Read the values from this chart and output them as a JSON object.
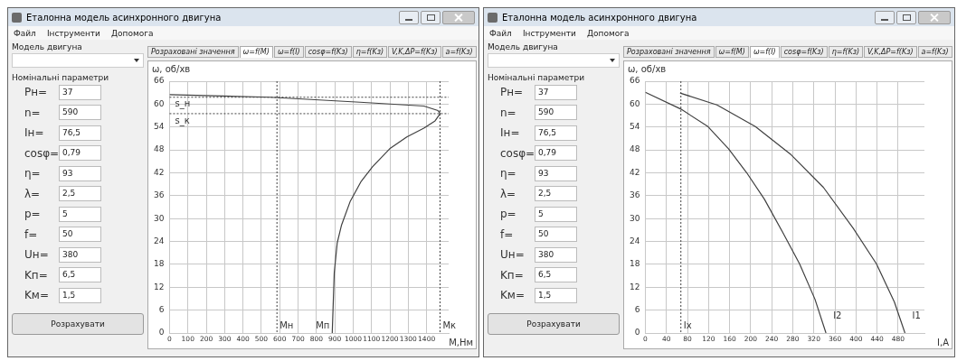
{
  "chart_data": [
    {
      "type": "other",
      "title": "Еталонна модель асинхронного двигуна",
      "annotations": [
        "Файл",
        "Інструменти",
        "Допомога",
        "Модель двигуна",
        "Номінальні параметри",
        "Pн=",
        "37",
        "n=",
        "590",
        "Iн=",
        "76,5",
        "cosφ=",
        "0,79",
        "η=",
        "93",
        "λ=",
        "2,5",
        "p=",
        "5",
        "f=",
        "50",
        "Uн=",
        "380",
        "Kп=",
        "6,5",
        "Kм=",
        "1,5",
        "Розрахувати",
        "Розраховані значення",
        "ω=f(M)",
        "ω=f(I)",
        "cosφ=f(Kз)",
        "η=f(Kз)",
        "V,K,ΔP=f(Kз)",
        "a=f(Kз)"
      ]
    },
    {
      "type": "line",
      "xlabel": "М,Нм",
      "ylabel": "ω, об/хв",
      "xlim": [
        0,
        1520
      ],
      "ylim": [
        0,
        66
      ],
      "xticks": [
        0,
        100,
        200,
        300,
        400,
        500,
        600,
        700,
        800,
        900,
        1000,
        1100,
        1200,
        1300,
        1400
      ],
      "yticks": [
        0,
        6,
        12,
        18,
        24,
        30,
        36,
        42,
        48,
        54,
        60,
        66
      ],
      "grid": true,
      "line_style": "solid",
      "series": [
        {
          "color": "#404040",
          "x": [
            0,
            549,
            1037,
            1385,
            1462,
            1474,
            1446,
            1385,
            1292,
            1199,
            1106,
            1044,
            983,
            936,
            913,
            897,
            886
          ],
          "values": [
            62.5,
            61.8,
            60.5,
            59.5,
            58.3,
            57.5,
            55.6,
            53.7,
            51.4,
            48.3,
            43.6,
            39.8,
            34.4,
            28.2,
            23.6,
            15.8,
            0
          ]
        }
      ],
      "ref_lines": [
        {
          "axis": "y",
          "value": 61.8,
          "label": "s_н",
          "line_style": "dotted",
          "color": "#404040"
        },
        {
          "axis": "y",
          "value": 57.5,
          "label": "s_к",
          "line_style": "dotted",
          "color": "#404040"
        },
        {
          "axis": "x",
          "value": 585,
          "label": "Мн",
          "line_style": "dotted",
          "color": "#404040"
        },
        {
          "axis": "x",
          "value": 1473,
          "label": "Мк",
          "line_style": "dotted",
          "color": "#404040"
        }
      ],
      "annotations": [
        {
          "text": "Мп",
          "x": 886,
          "y": 0
        }
      ]
    },
    {
      "type": "other",
      "title": "Еталонна модель асинхронного двигуна",
      "annotations": [
        "Файл",
        "Інструменти",
        "Допомога",
        "Модель двигуна",
        "Номінальні параметри",
        "Pн=",
        "37",
        "n=",
        "590",
        "Iн=",
        "76,5",
        "cosφ=",
        "0,79",
        "η=",
        "93",
        "λ=",
        "2,5",
        "p=",
        "5",
        "f=",
        "50",
        "Uн=",
        "380",
        "Kп=",
        "6,5",
        "Kм=",
        "1,5",
        "Розрахувати",
        "Розраховані значення",
        "ω=f(M)",
        "ω=f(I)",
        "cosφ=f(Kз)",
        "η=f(Kз)",
        "V,K,ΔP=f(Kз)",
        "a=f(Kз)"
      ]
    },
    {
      "type": "line",
      "xlabel": "I,A",
      "ylabel": "ω, об/хв",
      "xlim": [
        0,
        530
      ],
      "ylim": [
        0,
        66
      ],
      "xticks": [
        0,
        40,
        80,
        120,
        160,
        200,
        240,
        280,
        320,
        360,
        400,
        440,
        480
      ],
      "yticks": [
        0,
        6,
        12,
        18,
        24,
        30,
        36,
        42,
        48,
        54,
        60,
        66
      ],
      "grid": true,
      "line_style": "solid",
      "series": [
        {
          "name": "I2",
          "color": "#404040",
          "x": [
            0,
            67.5,
            119,
            158,
            192,
            226,
            260,
            293,
            322,
            343
          ],
          "values": [
            63.1,
            58.7,
            54.1,
            48.3,
            42.1,
            35.1,
            26.6,
            18.1,
            8.9,
            0
          ]
        },
        {
          "name": "I1",
          "color": "#404040",
          "x": [
            66,
            136,
            209,
            277,
            338,
            395,
            439,
            473,
            493
          ],
          "values": [
            62.9,
            59.8,
            54.1,
            46.7,
            38.2,
            27.4,
            18.1,
            8.1,
            0
          ]
        }
      ],
      "ref_lines": [
        {
          "axis": "x",
          "value": 67.5,
          "label": "Ix",
          "line_style": "dotted",
          "color": "#404040"
        }
      ]
    }
  ]
}
